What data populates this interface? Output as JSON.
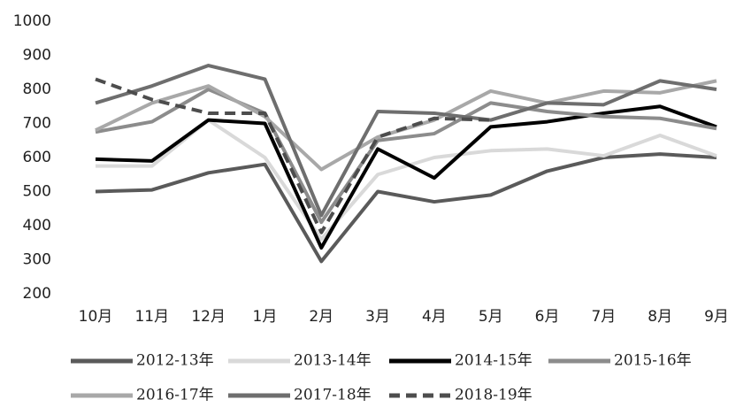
{
  "chart_data": {
    "type": "line",
    "categories": [
      "10月",
      "11月",
      "12月",
      "1月",
      "2月",
      "3月",
      "4月",
      "5月",
      "6月",
      "7月",
      "8月",
      "9月"
    ],
    "ylim": [
      200,
      1000
    ],
    "yticks": [
      200,
      300,
      400,
      500,
      600,
      700,
      800,
      900,
      1000
    ],
    "series": [
      {
        "name": "2012-13年",
        "color": "#5a5a5a",
        "dashed": false,
        "values": [
          500,
          505,
          555,
          580,
          295,
          500,
          470,
          490,
          560,
          600,
          610,
          600
        ]
      },
      {
        "name": "2013-14年",
        "color": "#d9d9d9",
        "dashed": false,
        "values": [
          575,
          575,
          710,
          600,
          360,
          550,
          600,
          620,
          625,
          605,
          665,
          605
        ]
      },
      {
        "name": "2014-15年",
        "color": "#000000",
        "dashed": false,
        "values": [
          595,
          590,
          710,
          700,
          335,
          625,
          540,
          690,
          705,
          730,
          750,
          690
        ]
      },
      {
        "name": "2015-16年",
        "color": "#8c8c8c",
        "dashed": false,
        "values": [
          675,
          705,
          800,
          730,
          410,
          650,
          670,
          760,
          735,
          720,
          715,
          685
        ]
      },
      {
        "name": "2016-17年",
        "color": "#a8a8a8",
        "dashed": false,
        "values": [
          680,
          760,
          810,
          720,
          565,
          660,
          710,
          795,
          760,
          795,
          790,
          825
        ]
      },
      {
        "name": "2017-18年",
        "color": "#6e6e6e",
        "dashed": false,
        "values": [
          760,
          810,
          870,
          830,
          430,
          735,
          730,
          710,
          760,
          755,
          825,
          800
        ]
      },
      {
        "name": "2018-19年",
        "color": "#4d4d4d",
        "dashed": true,
        "values": [
          830,
          770,
          730,
          730,
          380,
          660,
          715,
          710,
          null,
          null,
          null,
          null
        ]
      }
    ]
  }
}
